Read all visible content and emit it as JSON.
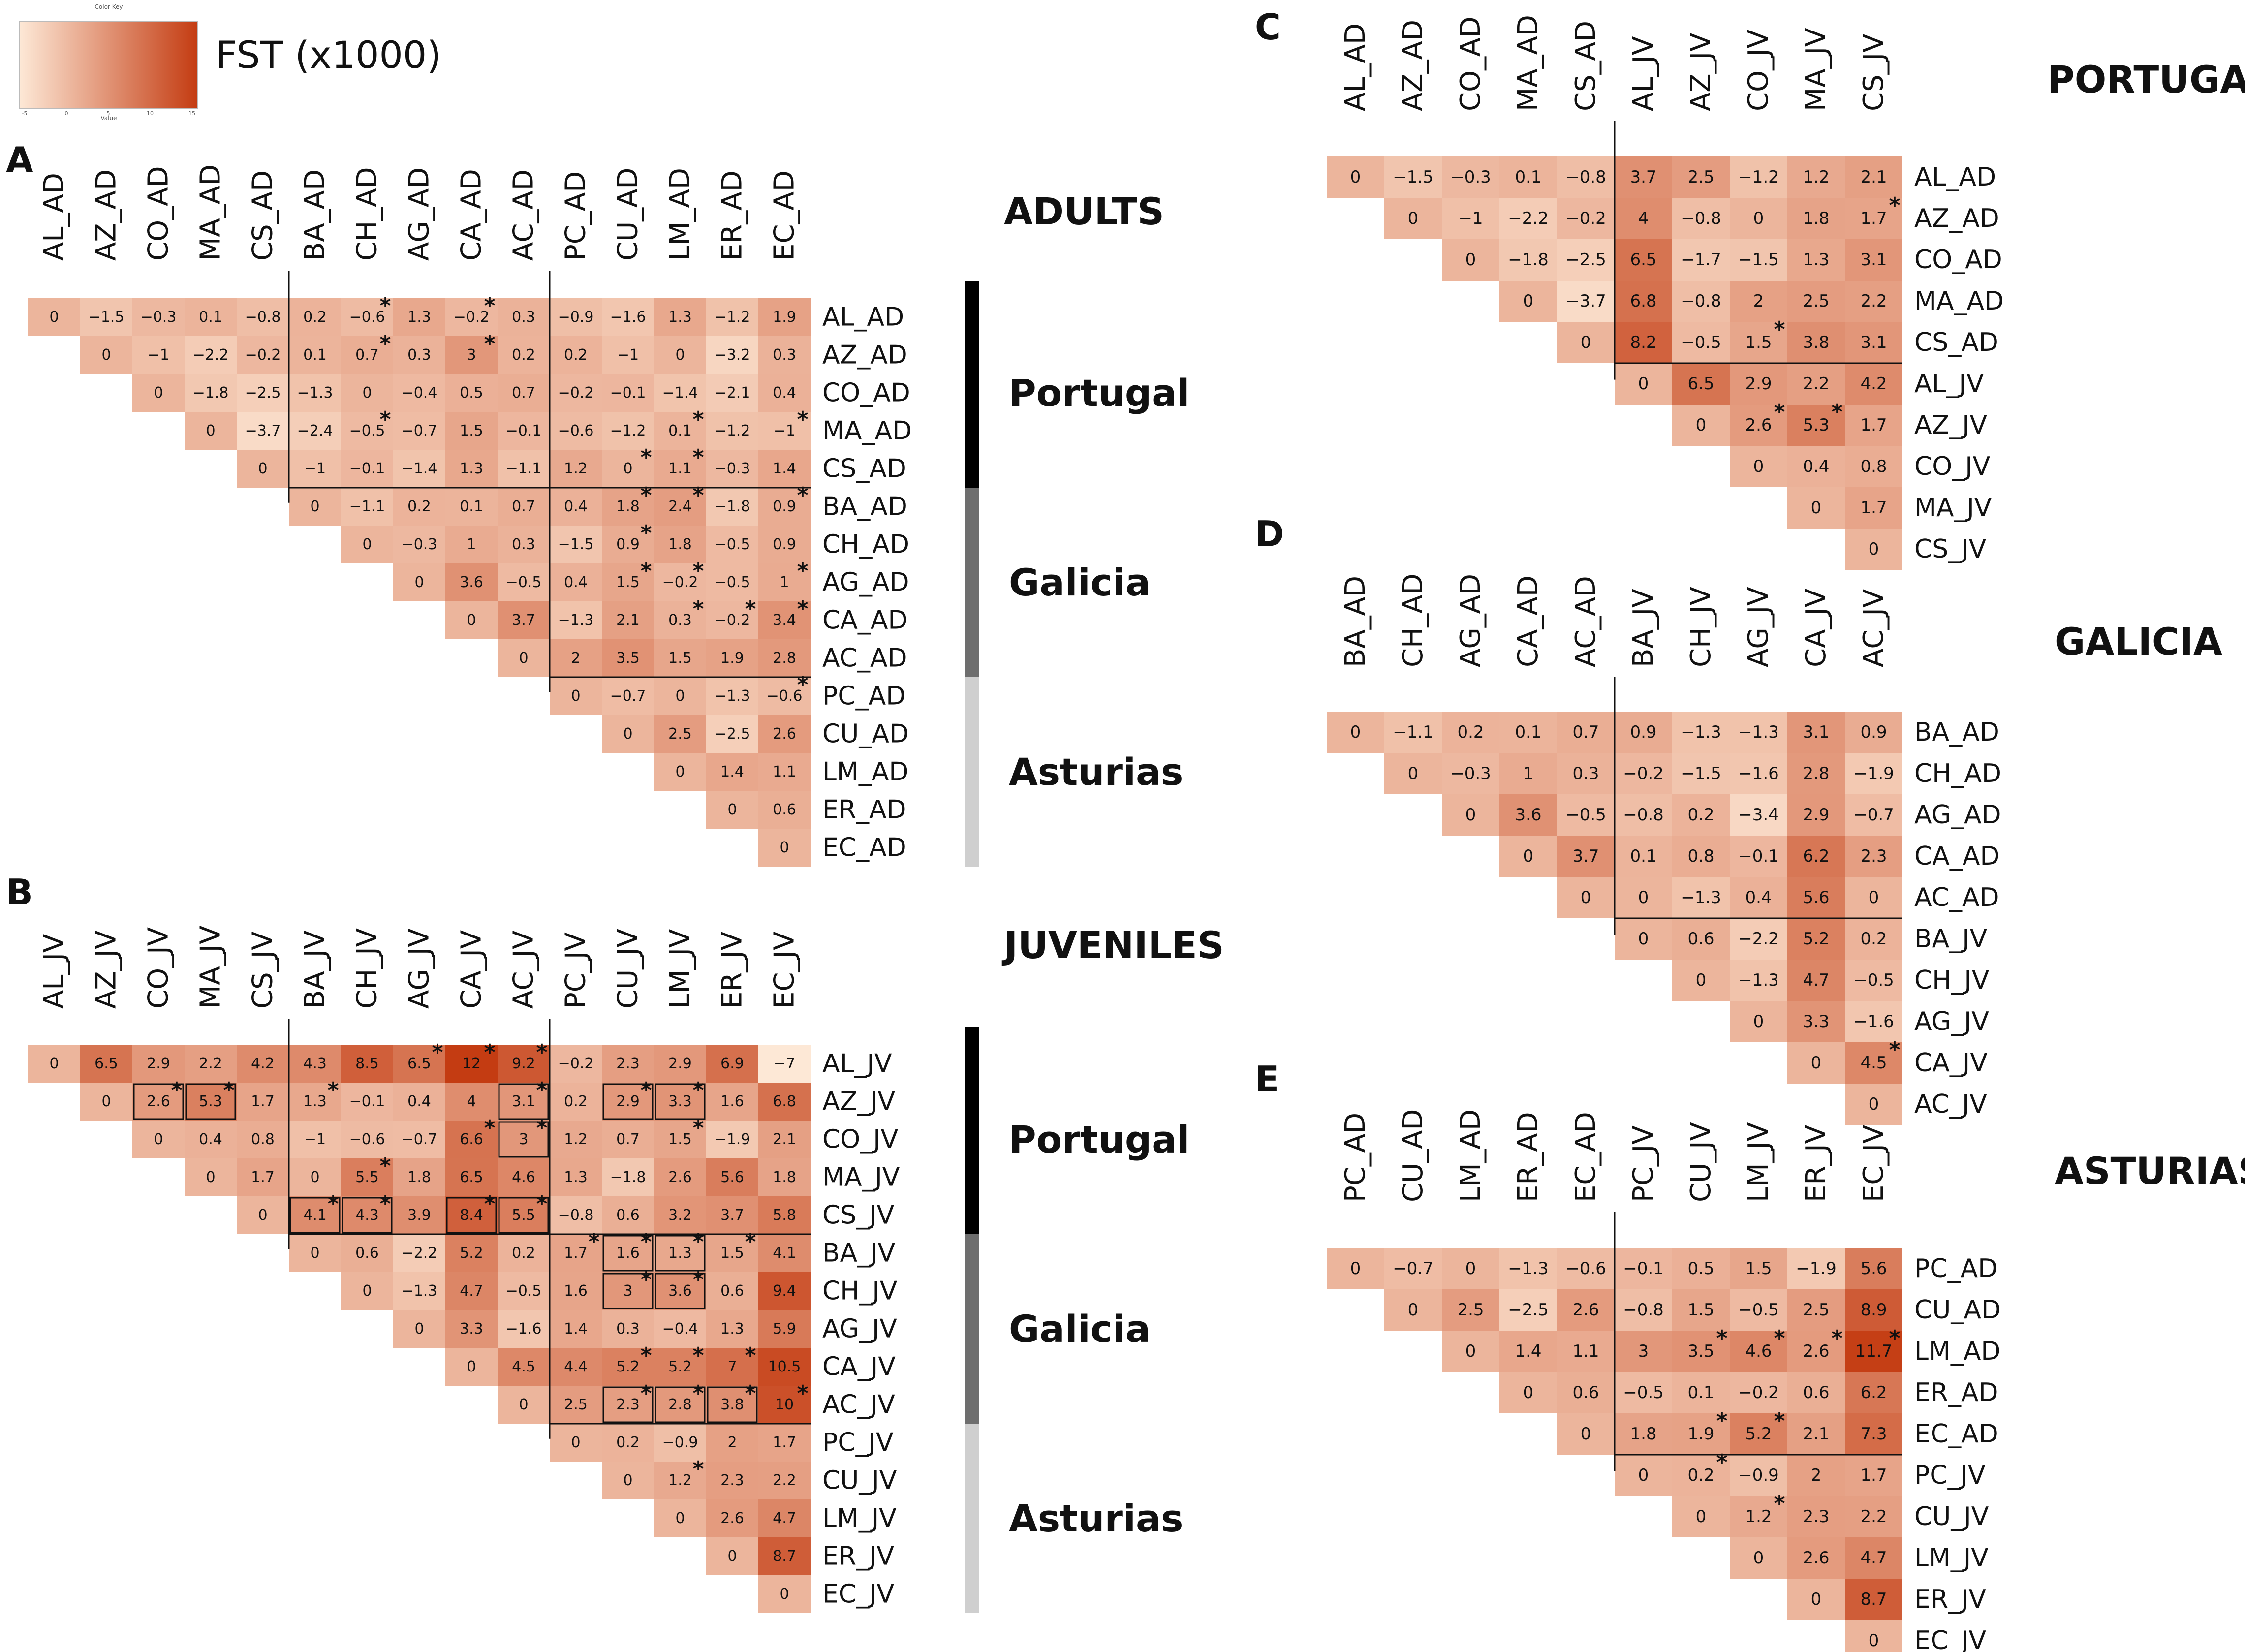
{
  "legend": {
    "title": "FST (x1000)",
    "key_label": "Color Key",
    "axis_label": "Value",
    "ticks": [
      "-5",
      "0",
      "5",
      "10",
      "15"
    ]
  },
  "colors": {
    "low": "#fde8d6",
    "high": "#c43c12",
    "text": "#111111",
    "portugal_bar": "#000000",
    "galicia_bar": "#6e6e6e",
    "asturias_bar": "#cfcfcf"
  },
  "chart_data": [
    {
      "id": "A",
      "type": "heatmap",
      "panel_label": "A",
      "title": "ADULTS",
      "labels": [
        "AL_AD",
        "AZ_AD",
        "CO_AD",
        "MA_AD",
        "CS_AD",
        "BA_AD",
        "CH_AD",
        "AG_AD",
        "CA_AD",
        "AC_AD",
        "PC_AD",
        "CU_AD",
        "LM_AD",
        "ER_AD",
        "EC_AD"
      ],
      "values": [
        [
          0,
          -1.5,
          -0.3,
          0.1,
          -0.8,
          0.2,
          -0.6,
          1.3,
          -0.2,
          0.3,
          -0.9,
          -1.6,
          1.3,
          -1.2,
          1.9
        ],
        [
          0,
          -1,
          -2.2,
          -0.2,
          0.1,
          0.7,
          0.3,
          3,
          0.2,
          0.2,
          -1,
          0,
          -3.2,
          0.3
        ],
        [
          0,
          -1.8,
          -2.5,
          -1.3,
          0,
          -0.4,
          0.5,
          0.7,
          -0.2,
          -0.1,
          -1.4,
          -2.1,
          0.4
        ],
        [
          0,
          -3.7,
          -2.4,
          -0.5,
          -0.7,
          1.5,
          -0.1,
          -0.6,
          -1.2,
          0.1,
          -1.2,
          -1
        ],
        [
          0,
          -1,
          -0.1,
          -1.4,
          1.3,
          -1.1,
          1.2,
          0,
          1.1,
          -0.3,
          1.4
        ],
        [
          0,
          -1.1,
          0.2,
          0.1,
          0.7,
          0.4,
          1.8,
          2.4,
          -1.8,
          0.9
        ],
        [
          0,
          -0.3,
          1,
          0.3,
          -1.5,
          0.9,
          1.8,
          -0.5,
          0.9
        ],
        [
          0,
          3.6,
          -0.5,
          0.4,
          1.5,
          -0.2,
          -0.5,
          1
        ],
        [
          0,
          3.7,
          -1.3,
          2.1,
          0.3,
          -0.2,
          3.4
        ],
        [
          0,
          2,
          3.5,
          1.5,
          1.9,
          2.8
        ],
        [
          0,
          -0.7,
          0,
          -1.3,
          -0.6
        ],
        [
          0,
          2.5,
          -2.5,
          2.6
        ],
        [
          0,
          1.4,
          1.1
        ],
        [
          0,
          0.6
        ],
        [
          0
        ]
      ],
      "stars": [
        [
          1,
          7
        ],
        [
          1,
          9
        ],
        [
          2,
          7
        ],
        [
          2,
          9
        ],
        [
          4,
          7
        ],
        [
          4,
          13
        ],
        [
          4,
          15
        ],
        [
          5,
          12
        ],
        [
          5,
          13
        ],
        [
          6,
          12
        ],
        [
          6,
          13
        ],
        [
          6,
          15
        ],
        [
          7,
          12
        ],
        [
          8,
          12
        ],
        [
          8,
          13
        ],
        [
          8,
          15
        ],
        [
          9,
          13
        ],
        [
          9,
          14
        ],
        [
          9,
          15
        ],
        [
          11,
          15
        ]
      ],
      "boxes": [],
      "groups": [
        {
          "name": "Portugal",
          "start": 1,
          "end": 5,
          "color_key": "portugal_bar"
        },
        {
          "name": "Galicia",
          "start": 6,
          "end": 10,
          "color_key": "galicia_bar"
        },
        {
          "name": "Asturias",
          "start": 11,
          "end": 15,
          "color_key": "asturias_bar"
        }
      ],
      "dividers": [
        5,
        10
      ],
      "scale": [
        -5,
        12
      ]
    },
    {
      "id": "B",
      "type": "heatmap",
      "panel_label": "B",
      "title": "JUVENILES",
      "labels": [
        "AL_JV",
        "AZ_JV",
        "CO_JV",
        "MA_JV",
        "CS_JV",
        "BA_JV",
        "CH_JV",
        "AG_JV",
        "CA_JV",
        "AC_JV",
        "PC_JV",
        "CU_JV",
        "LM_JV",
        "ER_JV",
        "EC_JV"
      ],
      "values": [
        [
          0,
          6.5,
          2.9,
          2.2,
          4.2,
          4.3,
          8.5,
          6.5,
          12,
          9.2,
          -0.2,
          2.3,
          2.9,
          6.9,
          -7
        ],
        [
          0,
          2.6,
          5.3,
          1.7,
          1.3,
          -0.1,
          0.4,
          4,
          3.1,
          0.2,
          2.9,
          3.3,
          1.6,
          6.8
        ],
        [
          0,
          0.4,
          0.8,
          -1,
          -0.6,
          -0.7,
          6.6,
          3,
          1.2,
          0.7,
          1.5,
          -1.9,
          2.1
        ],
        [
          0,
          1.7,
          0,
          5.5,
          1.8,
          6.5,
          4.6,
          1.3,
          -1.8,
          2.6,
          5.6,
          1.8
        ],
        [
          0,
          4.1,
          4.3,
          3.9,
          8.4,
          5.5,
          -0.8,
          0.6,
          3.2,
          3.7,
          5.8
        ],
        [
          0,
          0.6,
          -2.2,
          5.2,
          0.2,
          1.7,
          1.6,
          1.3,
          1.5,
          4.1
        ],
        [
          0,
          -1.3,
          4.7,
          -0.5,
          1.6,
          3,
          3.6,
          0.6,
          9.4
        ],
        [
          0,
          3.3,
          -1.6,
          1.4,
          0.3,
          -0.4,
          1.3,
          5.9
        ],
        [
          0,
          4.5,
          4.4,
          5.2,
          5.2,
          7,
          10.5
        ],
        [
          0,
          2.5,
          2.3,
          2.8,
          3.8,
          10
        ],
        [
          0,
          0.2,
          -0.9,
          2,
          1.7
        ],
        [
          0,
          1.2,
          2.3,
          2.2
        ],
        [
          0,
          2.6,
          4.7
        ],
        [
          0,
          8.7
        ],
        [
          0
        ]
      ],
      "stars": [
        [
          1,
          8
        ],
        [
          1,
          9
        ],
        [
          1,
          10
        ],
        [
          2,
          3
        ],
        [
          2,
          4
        ],
        [
          2,
          6
        ],
        [
          2,
          10
        ],
        [
          2,
          12
        ],
        [
          2,
          13
        ],
        [
          3,
          9
        ],
        [
          3,
          10
        ],
        [
          3,
          13
        ],
        [
          4,
          7
        ],
        [
          5,
          6
        ],
        [
          5,
          7
        ],
        [
          5,
          9
        ],
        [
          5,
          10
        ],
        [
          6,
          11
        ],
        [
          6,
          12
        ],
        [
          6,
          13
        ],
        [
          6,
          14
        ],
        [
          7,
          12
        ],
        [
          7,
          13
        ],
        [
          9,
          12
        ],
        [
          9,
          13
        ],
        [
          9,
          14
        ],
        [
          10,
          12
        ],
        [
          10,
          13
        ],
        [
          10,
          14
        ],
        [
          10,
          15
        ],
        [
          12,
          13
        ]
      ],
      "boxes": [
        [
          2,
          3
        ],
        [
          2,
          4
        ],
        [
          2,
          10
        ],
        [
          2,
          12
        ],
        [
          2,
          13
        ],
        [
          3,
          10
        ],
        [
          5,
          6
        ],
        [
          5,
          7
        ],
        [
          5,
          9
        ],
        [
          5,
          10
        ],
        [
          6,
          12
        ],
        [
          6,
          13
        ],
        [
          7,
          12
        ],
        [
          7,
          13
        ],
        [
          10,
          12
        ],
        [
          10,
          13
        ],
        [
          10,
          14
        ]
      ],
      "groups": [
        {
          "name": "Portugal",
          "start": 1,
          "end": 5,
          "color_key": "portugal_bar"
        },
        {
          "name": "Galicia",
          "start": 6,
          "end": 10,
          "color_key": "galicia_bar"
        },
        {
          "name": "Asturias",
          "start": 11,
          "end": 15,
          "color_key": "asturias_bar"
        }
      ],
      "dividers": [
        5,
        10
      ],
      "scale": [
        -5,
        12
      ]
    },
    {
      "id": "C",
      "type": "heatmap",
      "panel_label": "C",
      "title": "PORTUGAL",
      "labels": [
        "AL_AD",
        "AZ_AD",
        "CO_AD",
        "MA_AD",
        "CS_AD",
        "AL_JV",
        "AZ_JV",
        "CO_JV",
        "MA_JV",
        "CS_JV"
      ],
      "values": [
        [
          0,
          -1.5,
          -0.3,
          0.1,
          -0.8,
          3.7,
          2.5,
          -1.2,
          1.2,
          2.1
        ],
        [
          0,
          -1,
          -2.2,
          -0.2,
          4,
          -0.8,
          0,
          1.8,
          1.7
        ],
        [
          0,
          -1.8,
          -2.5,
          6.5,
          -1.7,
          -1.5,
          1.3,
          3.1
        ],
        [
          0,
          -3.7,
          6.8,
          -0.8,
          2,
          2.5,
          2.2
        ],
        [
          0,
          8.2,
          -0.5,
          1.5,
          3.8,
          3.1
        ],
        [
          0,
          6.5,
          2.9,
          2.2,
          4.2
        ],
        [
          0,
          2.6,
          5.3,
          1.7
        ],
        [
          0,
          0.4,
          0.8
        ],
        [
          0,
          1.7
        ],
        [
          0
        ]
      ],
      "stars": [
        [
          2,
          10
        ],
        [
          5,
          8
        ],
        [
          7,
          8
        ],
        [
          7,
          9
        ]
      ],
      "boxes": [],
      "groups": [],
      "dividers": [
        5
      ],
      "scale": [
        -5,
        12
      ]
    },
    {
      "id": "D",
      "type": "heatmap",
      "panel_label": "D",
      "title": "GALICIA",
      "labels": [
        "BA_AD",
        "CH_AD",
        "AG_AD",
        "CA_AD",
        "AC_AD",
        "BA_JV",
        "CH_JV",
        "AG_JV",
        "CA_JV",
        "AC_JV"
      ],
      "values": [
        [
          0,
          -1.1,
          0.2,
          0.1,
          0.7,
          0.9,
          -1.3,
          -1.3,
          3.1,
          0.9
        ],
        [
          0,
          -0.3,
          1,
          0.3,
          -0.2,
          -1.5,
          -1.6,
          2.8,
          -1.9
        ],
        [
          0,
          3.6,
          -0.5,
          -0.8,
          0.2,
          -3.4,
          2.9,
          -0.7
        ],
        [
          0,
          3.7,
          0.1,
          0.8,
          -0.1,
          6.2,
          2.3
        ],
        [
          0,
          0,
          -1.3,
          0.4,
          5.6,
          0
        ],
        [
          0,
          0.6,
          -2.2,
          5.2,
          0.2
        ],
        [
          0,
          -1.3,
          4.7,
          -0.5
        ],
        [
          0,
          3.3,
          -1.6
        ],
        [
          0,
          4.5
        ],
        [
          0
        ]
      ],
      "stars": [
        [
          9,
          10
        ]
      ],
      "boxes": [],
      "groups": [],
      "dividers": [
        5
      ],
      "scale": [
        -5,
        12
      ]
    },
    {
      "id": "E",
      "type": "heatmap",
      "panel_label": "E",
      "title": "ASTURIAS",
      "labels": [
        "PC_AD",
        "CU_AD",
        "LM_AD",
        "ER_AD",
        "EC_AD",
        "PC_JV",
        "CU_JV",
        "LM_JV",
        "ER_JV",
        "EC_JV"
      ],
      "values": [
        [
          0,
          -0.7,
          0,
          -1.3,
          -0.6,
          -0.1,
          0.5,
          1.5,
          -1.9,
          5.6
        ],
        [
          0,
          2.5,
          -2.5,
          2.6,
          -0.8,
          1.5,
          -0.5,
          2.5,
          8.9
        ],
        [
          0,
          1.4,
          1.1,
          3,
          3.5,
          4.6,
          2.6,
          11.7
        ],
        [
          0,
          0.6,
          -0.5,
          0.1,
          -0.2,
          0.6,
          6.2
        ],
        [
          0,
          1.8,
          1.9,
          5.2,
          2.1,
          7.3
        ],
        [
          0,
          0.2,
          -0.9,
          2,
          1.7
        ],
        [
          0,
          1.2,
          2.3,
          2.2
        ],
        [
          0,
          2.6,
          4.7
        ],
        [
          0,
          8.7
        ],
        [
          0
        ]
      ],
      "stars": [
        [
          3,
          7
        ],
        [
          3,
          8
        ],
        [
          3,
          9
        ],
        [
          3,
          10
        ],
        [
          5,
          7
        ],
        [
          5,
          8
        ],
        [
          6,
          7
        ],
        [
          7,
          8
        ]
      ],
      "boxes": [],
      "groups": [],
      "dividers": [
        5
      ],
      "scale": [
        -5,
        12
      ]
    }
  ]
}
